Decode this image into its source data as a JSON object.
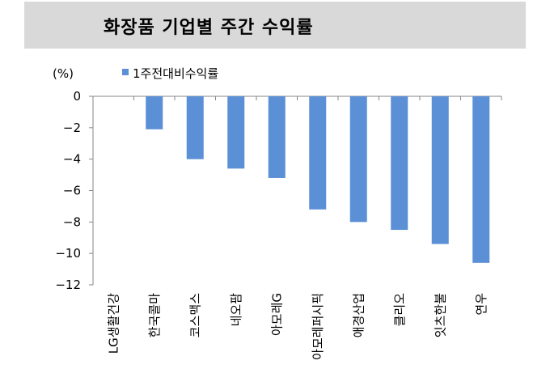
{
  "header": {
    "title": "화장품 기업별 주간 수익률"
  },
  "colors": {
    "bar": "#5b8fd6",
    "axis": "#868686",
    "band": "#d9d9d9"
  },
  "chart_data": {
    "type": "bar",
    "unit_label": "(%)",
    "categories": [
      "LG생활건강",
      "한국콜마",
      "코스맥스",
      "네오팜",
      "아모레G",
      "아모레퍼시픽",
      "애경산업",
      "클리오",
      "잇츠한불",
      "연우"
    ],
    "series": [
      {
        "name": "1주전대비수익률",
        "values": [
          0,
          -2.1,
          -4.0,
          -4.6,
          -5.2,
          -7.2,
          -8.0,
          -8.5,
          -9.4,
          -10.6
        ]
      }
    ],
    "yticks": [
      "0",
      "−2",
      "−4",
      "−6",
      "−8",
      "−10",
      "−12"
    ],
    "ylim": [
      -12,
      0
    ],
    "legend": "top-left",
    "grid": false
  }
}
